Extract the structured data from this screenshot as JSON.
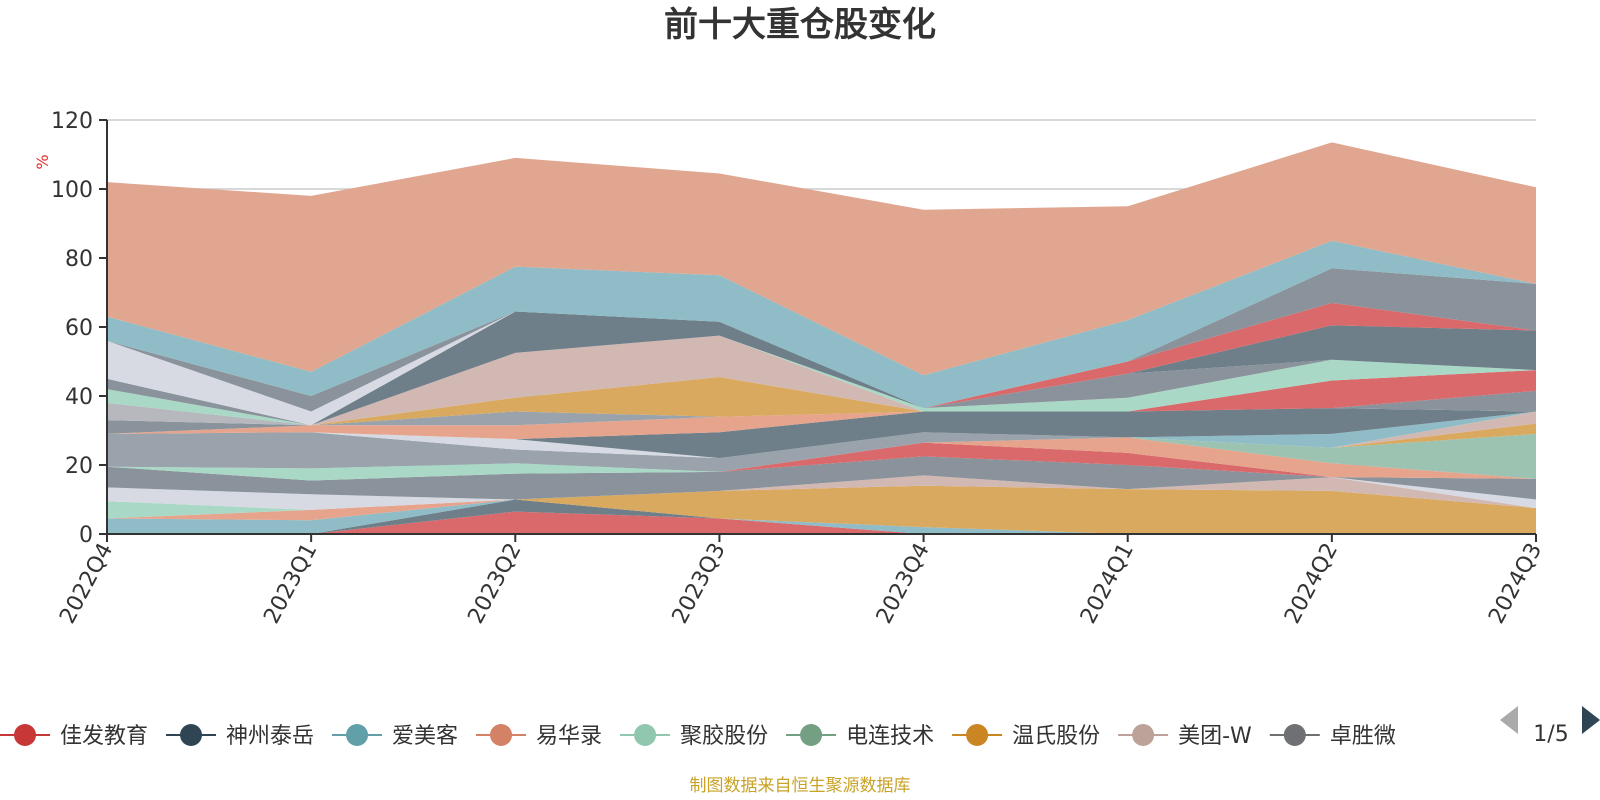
{
  "chart_data": {
    "type": "area",
    "title": "前十大重仓股变化",
    "ylabel": "%",
    "ylim": [
      0,
      120
    ],
    "yticks": [
      0,
      20,
      40,
      60,
      80,
      100,
      120
    ],
    "grid": true,
    "categories": [
      "2022Q4",
      "2023Q1",
      "2023Q2",
      "2023Q3",
      "2023Q4",
      "2024Q1",
      "2024Q2",
      "2024Q3"
    ],
    "series": [
      {
        "name": "佳发教育",
        "color": "#d9696a",
        "values": [
          0,
          0,
          6.5,
          4.5,
          0,
          0,
          0,
          0
        ]
      },
      {
        "name": "神州泰岳",
        "color": "#6e7f8a",
        "values": [
          0,
          0,
          3.5,
          0,
          0,
          0,
          0,
          0
        ]
      },
      {
        "name": "爱美客",
        "color": "#8fbcc6",
        "values": [
          4.5,
          4,
          0,
          0,
          2,
          0,
          0,
          0
        ]
      },
      {
        "name": "易华录",
        "color": "#e6a48d",
        "values": [
          0,
          3,
          0,
          0,
          0,
          0,
          0,
          0
        ]
      },
      {
        "name": "聚胶股份",
        "color": "#a9d9c6",
        "values": [
          5,
          0,
          0,
          0,
          0,
          0,
          0,
          0
        ]
      },
      {
        "name": "电连技术",
        "color": "#b6b8bd",
        "values": [
          0,
          0,
          0,
          0,
          0,
          0,
          0,
          0
        ]
      },
      {
        "name": "温氏股份",
        "color": "#d9a960",
        "values": [
          0,
          0,
          0,
          8,
          12,
          13,
          12.5,
          7.5
        ]
      },
      {
        "name": "美团-W",
        "color": "#d2b8b2",
        "values": [
          0,
          0,
          0,
          0,
          3,
          0,
          4,
          0
        ]
      },
      {
        "name": "卓胜微",
        "color": "#d7dae2",
        "values": [
          4,
          4.5,
          0,
          0,
          0,
          0,
          0,
          2.5
        ]
      },
      {
        "name": "",
        "color": "#8a939b",
        "values": [
          6,
          4,
          7.5,
          5.5,
          5.5,
          7,
          0,
          6
        ]
      },
      {
        "name": "",
        "color": "#a9d9c6",
        "values": [
          0,
          3.5,
          3,
          0,
          0,
          0,
          0,
          0
        ]
      },
      {
        "name": "",
        "color": "#d9696a",
        "values": [
          0,
          0,
          0,
          0,
          4,
          3.5,
          0,
          0
        ]
      },
      {
        "name": "",
        "color": "#e6a48d",
        "values": [
          0,
          0,
          0,
          0,
          0,
          4.5,
          4,
          0
        ]
      },
      {
        "name": "",
        "color": "#9aa3ab",
        "values": [
          9.5,
          10.5,
          4,
          4,
          3,
          0,
          0,
          0
        ]
      },
      {
        "name": "",
        "color": "#9cc2b1",
        "values": [
          0,
          0,
          0,
          0,
          0,
          0,
          4.5,
          13
        ]
      },
      {
        "name": "",
        "color": "#d9a960",
        "values": [
          0,
          0,
          0,
          0,
          0,
          0,
          0,
          3
        ]
      },
      {
        "name": "",
        "color": "#d2b8b2",
        "values": [
          0,
          0,
          0,
          0,
          0,
          0,
          0,
          3.5
        ]
      },
      {
        "name": "",
        "color": "#8fbcc6",
        "values": [
          0,
          0,
          0,
          0,
          0,
          0,
          4,
          0
        ]
      },
      {
        "name": "",
        "color": "#d7dae2",
        "values": [
          0,
          0,
          3,
          0,
          0,
          0,
          0,
          0
        ]
      },
      {
        "name": "",
        "color": "#6e7f8a",
        "values": [
          0,
          0,
          0,
          7.5,
          6,
          7.5,
          7.5,
          0
        ]
      },
      {
        "name": "",
        "color": "#e6a48d",
        "values": [
          0,
          2,
          4,
          4.5,
          0,
          0,
          0,
          0
        ]
      },
      {
        "name": "",
        "color": "#8a939b",
        "values": [
          4,
          0,
          0,
          0,
          0,
          0,
          0,
          6
        ]
      },
      {
        "name": "",
        "color": "#d9696a",
        "values": [
          0,
          0,
          0,
          0,
          0,
          0,
          8,
          6
        ]
      },
      {
        "name": "",
        "color": "#9aa3ab",
        "values": [
          0,
          0,
          4,
          0,
          0,
          0,
          0,
          0
        ]
      },
      {
        "name": "",
        "color": "#d9a960",
        "values": [
          0,
          0,
          4,
          11.5,
          0,
          0,
          0,
          0
        ]
      },
      {
        "name": "",
        "color": "#d2b8b2",
        "values": [
          0,
          0,
          13,
          12,
          0,
          0,
          0,
          0
        ]
      },
      {
        "name": "",
        "color": "#8fbcc6",
        "values": [
          0,
          0,
          0,
          0,
          0,
          0,
          0,
          0
        ]
      },
      {
        "name": "",
        "color": "#b6b8bd",
        "values": [
          5,
          0,
          0,
          0,
          0,
          0,
          0,
          0
        ]
      },
      {
        "name": "",
        "color": "#a9d9c6",
        "values": [
          4,
          0,
          0,
          0,
          1,
          4,
          6,
          0
        ]
      },
      {
        "name": "",
        "color": "#8a939b",
        "values": [
          3,
          0,
          0,
          0,
          0,
          7,
          0,
          0
        ]
      },
      {
        "name": "",
        "color": "#6e7f8a",
        "values": [
          0,
          0,
          12,
          4,
          0,
          0,
          10,
          11.5
        ]
      },
      {
        "name": "",
        "color": "#d7dae2",
        "values": [
          11,
          4,
          0,
          0,
          0,
          0,
          0,
          0
        ]
      },
      {
        "name": "",
        "color": "#d9696a",
        "values": [
          0,
          0,
          0,
          0,
          0,
          3.5,
          6.5,
          0
        ]
      },
      {
        "name": "",
        "color": "#8a939b",
        "values": [
          0,
          4.5,
          0,
          0,
          0,
          0,
          10,
          13.5
        ]
      },
      {
        "name": "",
        "color": "#8fbcc6",
        "values": [
          7,
          7,
          13,
          13.5,
          9.5,
          12,
          8,
          0
        ]
      },
      {
        "name": "",
        "color": "#e0a690",
        "values": [
          39,
          51,
          31.5,
          29.5,
          48,
          33,
          28.5,
          28
        ]
      }
    ],
    "legend": {
      "position": "bottom",
      "items": [
        {
          "name": "佳发教育",
          "color": "#c83737"
        },
        {
          "name": "神州泰岳",
          "color": "#2f4553"
        },
        {
          "name": "爱美客",
          "color": "#61a0a8"
        },
        {
          "name": "易华录",
          "color": "#d48265"
        },
        {
          "name": "聚胶股份",
          "color": "#91c7ae"
        },
        {
          "name": "电连技术",
          "color": "#749f83"
        },
        {
          "name": "温氏股份",
          "color": "#ca8622"
        },
        {
          "name": "美团-W",
          "color": "#bda29a"
        },
        {
          "name": "卓胜微",
          "color": "#6e7074"
        }
      ],
      "page": "1/5"
    }
  },
  "source": "制图数据来自恒生聚源数据库"
}
